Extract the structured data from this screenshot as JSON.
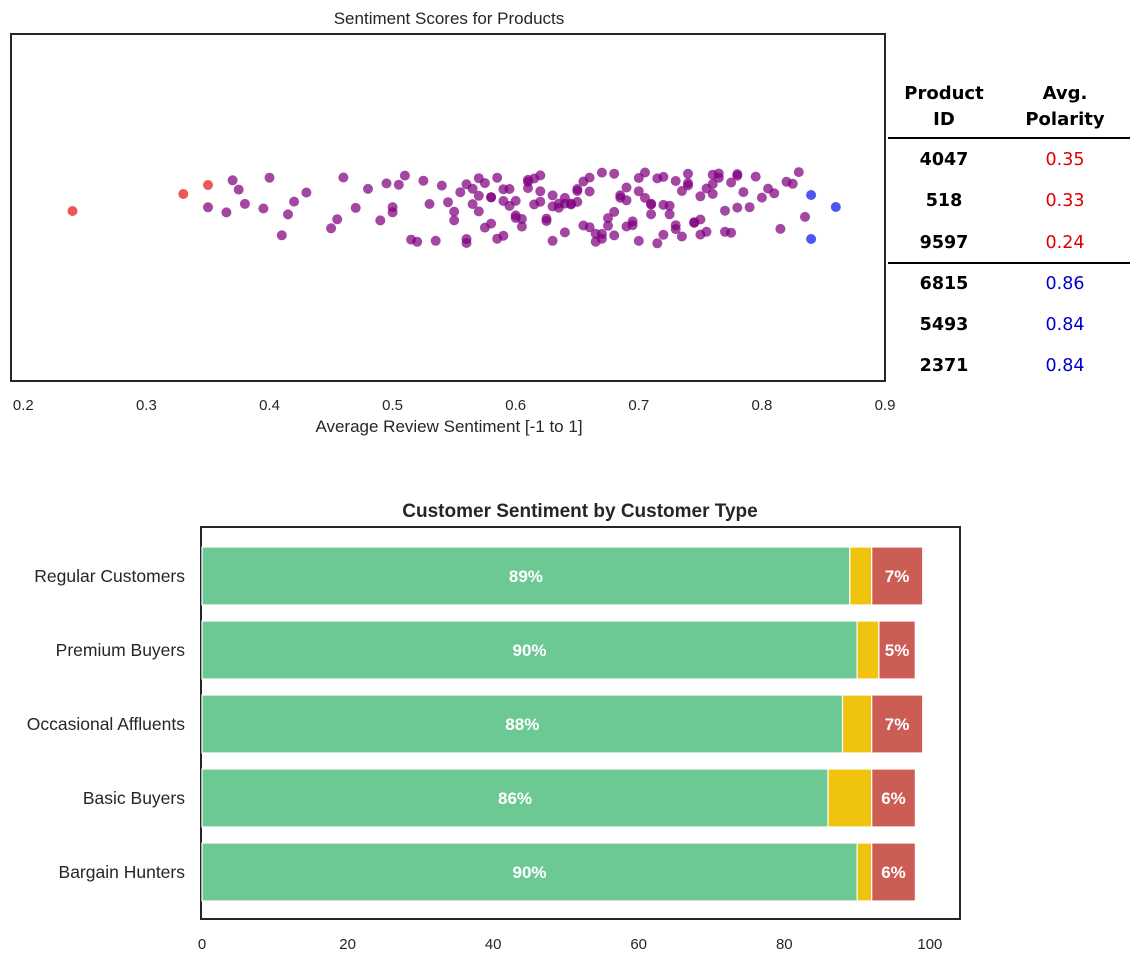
{
  "chart_data": [
    {
      "type": "scatter",
      "title": "Sentiment Scores for Products",
      "xlabel": "Average Review Sentiment [-1 to 1]",
      "ylabel": "",
      "xlim": [
        0.19,
        0.9
      ],
      "xticks": [
        "0.2",
        "0.3",
        "0.4",
        "0.5",
        "0.6",
        "0.7",
        "0.8",
        "0.9"
      ],
      "grid": false,
      "colors": {
        "low": "#ef4444",
        "mid": "#800080",
        "high": "#3b44f0"
      },
      "series": [
        {
          "group": "low",
          "values": [
            0.24,
            0.33,
            0.35
          ]
        },
        {
          "group": "high",
          "values": [
            0.84,
            0.86,
            0.84
          ]
        },
        {
          "group": "mid",
          "values": [
            0.35,
            0.365,
            0.37,
            0.375,
            0.38,
            0.395,
            0.4,
            0.41,
            0.415,
            0.42,
            0.43,
            0.45,
            0.455,
            0.46,
            0.47,
            0.48,
            0.49,
            0.495,
            0.5,
            0.5,
            0.505,
            0.51,
            0.515,
            0.52,
            0.525,
            0.53,
            0.535,
            0.54,
            0.545,
            0.55,
            0.55,
            0.555,
            0.56,
            0.56,
            0.565,
            0.565,
            0.57,
            0.57,
            0.575,
            0.575,
            0.58,
            0.58,
            0.585,
            0.585,
            0.59,
            0.59,
            0.595,
            0.595,
            0.6,
            0.6,
            0.605,
            0.605,
            0.61,
            0.61,
            0.615,
            0.615,
            0.62,
            0.62,
            0.625,
            0.625,
            0.63,
            0.63,
            0.635,
            0.635,
            0.64,
            0.64,
            0.645,
            0.645,
            0.65,
            0.65,
            0.655,
            0.655,
            0.66,
            0.66,
            0.665,
            0.665,
            0.67,
            0.67,
            0.675,
            0.675,
            0.68,
            0.68,
            0.685,
            0.685,
            0.69,
            0.69,
            0.695,
            0.695,
            0.7,
            0.7,
            0.705,
            0.705,
            0.71,
            0.71,
            0.715,
            0.715,
            0.72,
            0.72,
            0.725,
            0.725,
            0.73,
            0.73,
            0.735,
            0.735,
            0.74,
            0.74,
            0.745,
            0.745,
            0.75,
            0.75,
            0.755,
            0.755,
            0.76,
            0.76,
            0.765,
            0.765,
            0.77,
            0.77,
            0.775,
            0.775,
            0.78,
            0.78,
            0.785,
            0.79,
            0.795,
            0.8,
            0.805,
            0.81,
            0.815,
            0.82,
            0.825,
            0.83,
            0.835,
            0.57,
            0.59,
            0.61,
            0.63,
            0.65,
            0.67,
            0.69,
            0.71,
            0.73,
            0.75,
            0.56,
            0.58,
            0.6,
            0.62,
            0.64,
            0.66,
            0.68,
            0.7,
            0.72,
            0.74,
            0.76,
            0.78
          ]
        }
      ]
    },
    {
      "type": "bar",
      "orientation": "horizontal",
      "stacked": true,
      "title": "Customer Sentiment by Customer Type",
      "xlabel": "",
      "ylabel": "",
      "xlim": [
        0,
        104
      ],
      "xticks": [
        "0",
        "20",
        "40",
        "60",
        "80",
        "100"
      ],
      "grid": false,
      "categories": [
        "Regular Customers",
        "Premium Buyers",
        "Occasional Affluents",
        "Basic Buyers",
        "Bargain Hunters"
      ],
      "series": [
        {
          "color": "#6dc994",
          "values": [
            89,
            90,
            88,
            86,
            90
          ],
          "labels": [
            "89%",
            "90%",
            "88%",
            "86%",
            "90%"
          ]
        },
        {
          "color": "#f0c30f",
          "values": [
            3,
            3,
            4,
            6,
            2
          ],
          "labels": [
            "",
            "",
            "",
            "",
            ""
          ]
        },
        {
          "color": "#cc5d55",
          "values": [
            7,
            5,
            7,
            6,
            6
          ],
          "labels": [
            "7%",
            "5%",
            "7%",
            "6%",
            "6%"
          ]
        }
      ]
    }
  ],
  "table": {
    "headers": [
      [
        "Product",
        "ID"
      ],
      [
        "Avg.",
        "Polarity"
      ]
    ],
    "rows": [
      {
        "id": "4047",
        "value": "0.35",
        "color": "#e00000"
      },
      {
        "id": "518",
        "value": "0.33",
        "color": "#e00000"
      },
      {
        "id": "9597",
        "value": "0.24",
        "color": "#e00000"
      },
      {
        "id": "6815",
        "value": "0.86",
        "color": "#0000cc"
      },
      {
        "id": "5493",
        "value": "0.84",
        "color": "#0000cc"
      },
      {
        "id": "2371",
        "value": "0.84",
        "color": "#0000cc"
      }
    ]
  }
}
